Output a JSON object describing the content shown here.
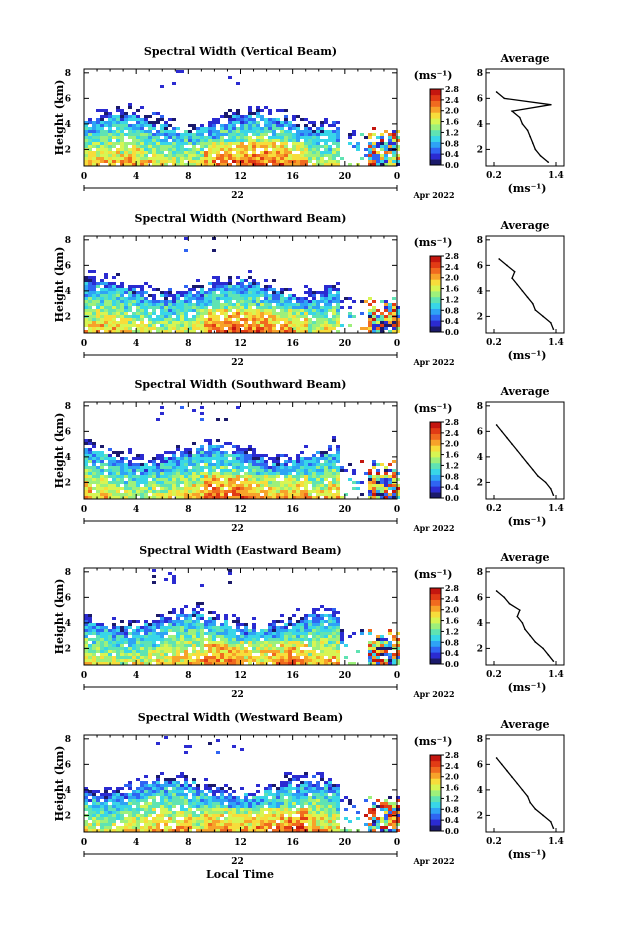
{
  "figure": {
    "x_axis_label": "Local Time",
    "day_label": "22",
    "month_year_label": "Apr 2022"
  },
  "chart_data": [
    {
      "type": "heatmap",
      "title": "Spectral Width (Vertical Beam)",
      "ylabel": "Height (km)",
      "x_ticks": [
        "0",
        "4",
        "8",
        "12",
        "16",
        "20",
        "0"
      ],
      "xlim": [
        0,
        24
      ],
      "y_ticks": [
        "2",
        "4",
        "6",
        "8"
      ],
      "ylim": [
        0.7,
        8.3
      ],
      "colorbar_label": "(ms⁻¹)",
      "colorbar_ticks": [
        "0.0",
        "0.4",
        "0.8",
        "1.2",
        "1.6",
        "2.0",
        "2.4",
        "2.8"
      ],
      "colorbar_range": [
        0,
        2.8
      ],
      "profile": {
        "title": "Average",
        "xlabel": "(ms⁻¹)",
        "x_ticks": [
          "0.2",
          "1.4"
        ],
        "xlim": [
          0.2,
          1.4
        ],
        "y_ticks": [
          "2",
          "4",
          "6",
          "8"
        ],
        "ylim": [
          0.7,
          8.3
        ],
        "height": [
          1.0,
          1.5,
          2.0,
          2.5,
          3.0,
          3.5,
          4.0,
          4.5,
          5.0,
          5.5,
          6.0,
          6.5
        ],
        "width": [
          1.25,
          1.1,
          1.0,
          0.95,
          0.9,
          0.85,
          0.75,
          0.7,
          0.55,
          1.3,
          0.4,
          0.25
        ]
      }
    },
    {
      "type": "heatmap",
      "title": "Spectral Width (Northward Beam)",
      "ylabel": "Height (km)",
      "x_ticks": [
        "0",
        "4",
        "8",
        "12",
        "16",
        "20",
        "0"
      ],
      "xlim": [
        0,
        24
      ],
      "y_ticks": [
        "2",
        "4",
        "6",
        "8"
      ],
      "ylim": [
        0.7,
        8.3
      ],
      "colorbar_label": "(ms⁻¹)",
      "colorbar_ticks": [
        "0.0",
        "0.4",
        "0.8",
        "1.2",
        "1.6",
        "2.0",
        "2.4",
        "2.8"
      ],
      "colorbar_range": [
        0,
        2.8
      ],
      "profile": {
        "title": "Average",
        "xlabel": "(ms⁻¹)",
        "x_ticks": [
          "0.2",
          "1.4"
        ],
        "xlim": [
          0.2,
          1.4
        ],
        "y_ticks": [
          "2",
          "4",
          "6",
          "8"
        ],
        "ylim": [
          0.7,
          8.3
        ],
        "height": [
          1.0,
          1.5,
          2.0,
          2.5,
          3.0,
          3.5,
          4.0,
          4.5,
          5.0,
          5.5,
          6.0,
          6.5
        ],
        "width": [
          1.35,
          1.3,
          1.15,
          1.0,
          0.95,
          0.85,
          0.75,
          0.65,
          0.55,
          0.6,
          0.45,
          0.3
        ]
      }
    },
    {
      "type": "heatmap",
      "title": "Spectral Width (Southward Beam)",
      "ylabel": "Height (km)",
      "x_ticks": [
        "0",
        "4",
        "8",
        "12",
        "16",
        "20",
        "0"
      ],
      "xlim": [
        0,
        24
      ],
      "y_ticks": [
        "2",
        "4",
        "6",
        "8"
      ],
      "ylim": [
        0.7,
        8.3
      ],
      "colorbar_label": "(ms⁻¹)",
      "colorbar_ticks": [
        "0.0",
        "0.4",
        "0.8",
        "1.2",
        "1.6",
        "2.0",
        "2.4",
        "2.8"
      ],
      "colorbar_range": [
        0,
        2.8
      ],
      "profile": {
        "title": "Average",
        "xlabel": "(ms⁻¹)",
        "x_ticks": [
          "0.2",
          "1.4"
        ],
        "xlim": [
          0.2,
          1.4
        ],
        "y_ticks": [
          "2",
          "4",
          "6",
          "8"
        ],
        "ylim": [
          0.7,
          8.3
        ],
        "height": [
          1.0,
          1.5,
          2.0,
          2.5,
          3.0,
          3.5,
          4.0,
          4.5,
          5.0,
          5.5,
          6.0,
          6.5
        ],
        "width": [
          1.35,
          1.3,
          1.2,
          1.05,
          0.95,
          0.85,
          0.75,
          0.65,
          0.55,
          0.45,
          0.35,
          0.25
        ]
      }
    },
    {
      "type": "heatmap",
      "title": "Spectral Width (Eastward Beam)",
      "ylabel": "Height (km)",
      "x_ticks": [
        "0",
        "4",
        "8",
        "12",
        "16",
        "20",
        "0"
      ],
      "xlim": [
        0,
        24
      ],
      "y_ticks": [
        "2",
        "4",
        "6",
        "8"
      ],
      "ylim": [
        0.7,
        8.3
      ],
      "colorbar_label": "(ms⁻¹)",
      "colorbar_ticks": [
        "0.0",
        "0.4",
        "0.8",
        "1.2",
        "1.6",
        "2.0",
        "2.4",
        "2.8"
      ],
      "colorbar_range": [
        0,
        2.8
      ],
      "profile": {
        "title": "Average",
        "xlabel": "(ms⁻¹)",
        "x_ticks": [
          "0.2",
          "1.4"
        ],
        "xlim": [
          0.2,
          1.4
        ],
        "y_ticks": [
          "2",
          "4",
          "6",
          "8"
        ],
        "ylim": [
          0.7,
          8.3
        ],
        "height": [
          1.0,
          1.5,
          2.0,
          2.5,
          3.0,
          3.5,
          4.0,
          4.5,
          5.0,
          5.5,
          6.0,
          6.5
        ],
        "width": [
          1.35,
          1.25,
          1.15,
          1.0,
          0.9,
          0.8,
          0.75,
          0.65,
          0.7,
          0.5,
          0.4,
          0.25
        ]
      }
    },
    {
      "type": "heatmap",
      "title": "Spectral Width (Westward Beam)",
      "ylabel": "Height (km)",
      "x_ticks": [
        "0",
        "4",
        "8",
        "12",
        "16",
        "20",
        "0"
      ],
      "xlim": [
        0,
        24
      ],
      "y_ticks": [
        "2",
        "4",
        "6",
        "8"
      ],
      "ylim": [
        0.7,
        8.3
      ],
      "colorbar_label": "(ms⁻¹)",
      "colorbar_ticks": [
        "0.0",
        "0.4",
        "0.8",
        "1.2",
        "1.6",
        "2.0",
        "2.4",
        "2.8"
      ],
      "colorbar_range": [
        0,
        2.8
      ],
      "profile": {
        "title": "Average",
        "xlabel": "(ms⁻¹)",
        "x_ticks": [
          "0.2",
          "1.4"
        ],
        "xlim": [
          0.2,
          1.4
        ],
        "y_ticks": [
          "2",
          "4",
          "6",
          "8"
        ],
        "ylim": [
          0.7,
          8.3
        ],
        "height": [
          1.0,
          1.5,
          2.0,
          2.5,
          3.0,
          3.5,
          4.0,
          4.5,
          5.0,
          5.5,
          6.0,
          6.5
        ],
        "width": [
          1.35,
          1.3,
          1.15,
          1.0,
          0.9,
          0.85,
          0.75,
          0.65,
          0.55,
          0.45,
          0.35,
          0.25
        ]
      }
    }
  ]
}
